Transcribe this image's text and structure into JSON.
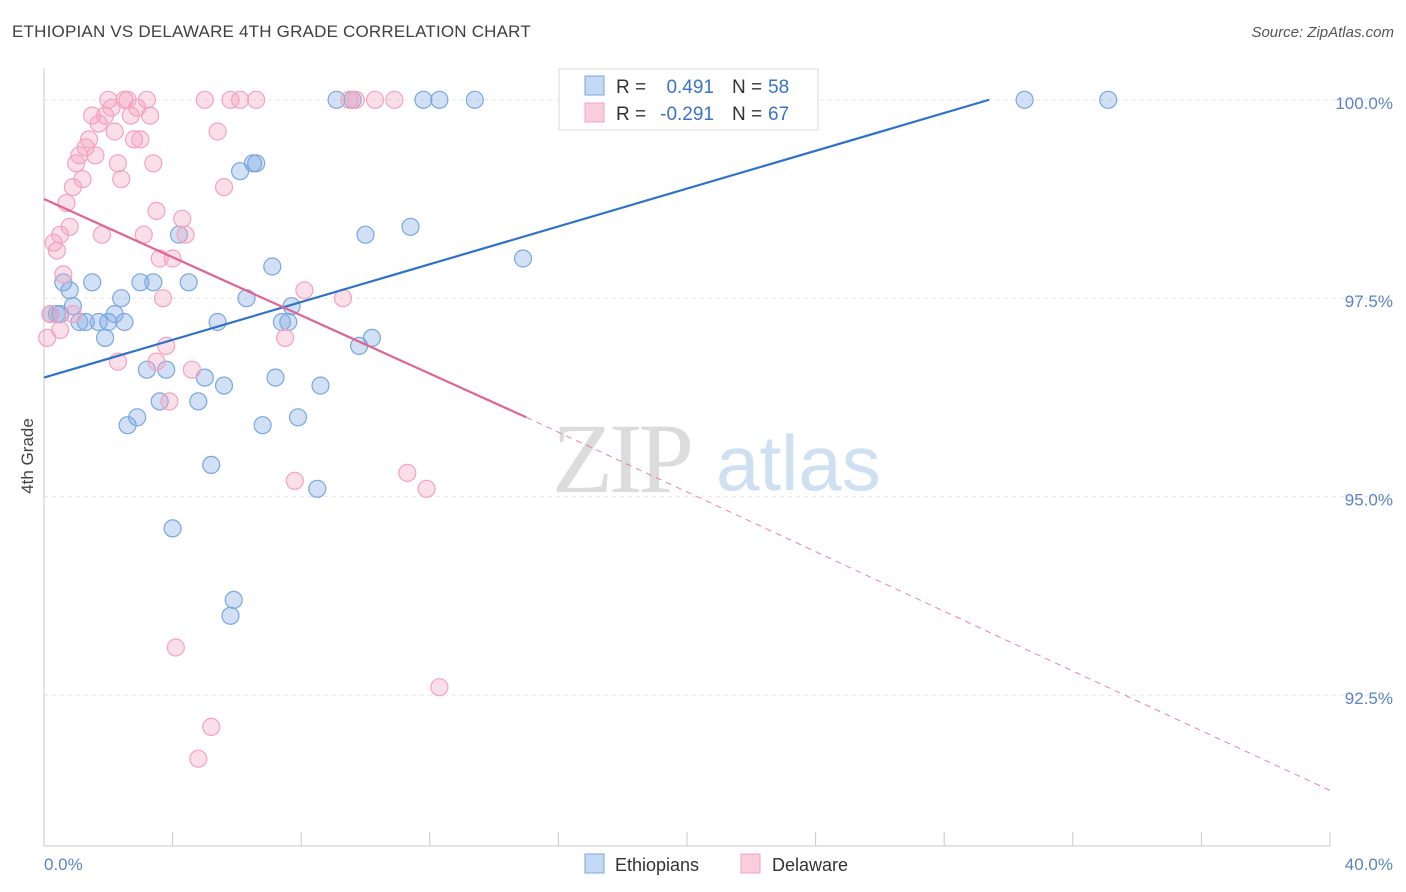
{
  "header": {
    "title": "ETHIOPIAN VS DELAWARE 4TH GRADE CORRELATION CHART",
    "source": "Source: ZipAtlas.com"
  },
  "watermark": {
    "zip": "ZIP",
    "atlas": "atlas"
  },
  "chart_data": {
    "type": "scatter",
    "ylabel": "4th Grade",
    "xlim": [
      0,
      40
    ],
    "ylim": [
      90.6,
      100.4
    ],
    "x_ticks": [
      "0.0%",
      "40.0%"
    ],
    "y_ticks": [
      {
        "value": 100.0,
        "label": "100.0%"
      },
      {
        "value": 97.5,
        "label": "97.5%"
      },
      {
        "value": 95.0,
        "label": "95.0%"
      },
      {
        "value": 92.5,
        "label": "92.5%"
      }
    ],
    "grid": true,
    "legend_position": "top-center",
    "stats": [
      {
        "r_label": "R =",
        "r_value": "0.491",
        "n_label": "N =",
        "n_value": "58"
      },
      {
        "r_label": "R =",
        "r_value": "-0.291",
        "n_label": "N =",
        "n_value": "67"
      }
    ],
    "series": [
      {
        "name": "Ethiopians",
        "color": "#7aa7e0",
        "line_color": "#2f72c8",
        "trend": {
          "x0": 0,
          "y0": 96.5,
          "x1": 29.4,
          "y1": 100.0,
          "dash_to": null
        },
        "points": [
          [
            0.2,
            97.3
          ],
          [
            0.4,
            97.3
          ],
          [
            0.5,
            97.3
          ],
          [
            0.6,
            97.7
          ],
          [
            0.8,
            97.6
          ],
          [
            0.9,
            97.4
          ],
          [
            1.1,
            97.2
          ],
          [
            1.3,
            97.2
          ],
          [
            1.5,
            97.7
          ],
          [
            1.7,
            97.2
          ],
          [
            1.9,
            97.0
          ],
          [
            2.0,
            97.2
          ],
          [
            2.2,
            97.3
          ],
          [
            2.4,
            97.5
          ],
          [
            2.5,
            97.2
          ],
          [
            2.6,
            95.9
          ],
          [
            2.9,
            96.0
          ],
          [
            3.0,
            97.7
          ],
          [
            3.2,
            96.6
          ],
          [
            3.4,
            97.7
          ],
          [
            3.6,
            96.2
          ],
          [
            3.8,
            96.6
          ],
          [
            4.0,
            94.6
          ],
          [
            4.2,
            98.3
          ],
          [
            4.5,
            97.7
          ],
          [
            4.8,
            96.2
          ],
          [
            5.0,
            96.5
          ],
          [
            5.2,
            95.4
          ],
          [
            5.4,
            97.2
          ],
          [
            5.6,
            96.4
          ],
          [
            5.8,
            93.5
          ],
          [
            5.9,
            93.7
          ],
          [
            6.1,
            99.1
          ],
          [
            6.3,
            97.5
          ],
          [
            6.5,
            99.2
          ],
          [
            6.6,
            99.2
          ],
          [
            6.8,
            95.9
          ],
          [
            7.1,
            97.9
          ],
          [
            7.2,
            96.5
          ],
          [
            7.4,
            97.2
          ],
          [
            7.6,
            97.2
          ],
          [
            7.7,
            97.4
          ],
          [
            7.9,
            96.0
          ],
          [
            8.5,
            95.1
          ],
          [
            8.6,
            96.4
          ],
          [
            9.1,
            100.0
          ],
          [
            9.6,
            100.0
          ],
          [
            9.8,
            96.9
          ],
          [
            10.0,
            98.3
          ],
          [
            10.2,
            97.0
          ],
          [
            11.4,
            98.4
          ],
          [
            11.8,
            100.0
          ],
          [
            12.3,
            100.0
          ],
          [
            13.4,
            100.0
          ],
          [
            14.9,
            98.0
          ],
          [
            20.7,
            100.0
          ],
          [
            30.5,
            100.0
          ],
          [
            33.1,
            100.0
          ]
        ]
      },
      {
        "name": "Delaware",
        "color": "#f4a3bd",
        "line_color": "#e06592",
        "trend": {
          "x0": 0,
          "y0": 98.75,
          "x1": 15.0,
          "y1": 96.0,
          "dash_to": {
            "x": 40,
            "y": 91.3
          }
        },
        "points": [
          [
            0.1,
            97.0
          ],
          [
            0.2,
            97.3
          ],
          [
            0.3,
            98.2
          ],
          [
            0.4,
            98.1
          ],
          [
            0.5,
            98.3
          ],
          [
            0.6,
            97.8
          ],
          [
            0.7,
            98.7
          ],
          [
            0.8,
            98.4
          ],
          [
            0.9,
            98.9
          ],
          [
            1.0,
            99.2
          ],
          [
            1.1,
            99.3
          ],
          [
            1.2,
            99.0
          ],
          [
            1.3,
            99.4
          ],
          [
            1.4,
            99.5
          ],
          [
            1.5,
            99.8
          ],
          [
            1.6,
            99.3
          ],
          [
            1.7,
            99.7
          ],
          [
            1.8,
            98.3
          ],
          [
            1.9,
            99.8
          ],
          [
            2.0,
            100.0
          ],
          [
            2.1,
            99.9
          ],
          [
            2.2,
            99.6
          ],
          [
            2.3,
            99.2
          ],
          [
            2.4,
            99.0
          ],
          [
            2.5,
            100.0
          ],
          [
            2.6,
            100.0
          ],
          [
            2.7,
            99.8
          ],
          [
            2.8,
            99.5
          ],
          [
            2.9,
            99.9
          ],
          [
            3.0,
            99.5
          ],
          [
            3.1,
            98.3
          ],
          [
            3.2,
            100.0
          ],
          [
            3.3,
            99.8
          ],
          [
            3.4,
            99.2
          ],
          [
            3.5,
            98.6
          ],
          [
            3.6,
            98.0
          ],
          [
            3.7,
            97.5
          ],
          [
            3.8,
            96.9
          ],
          [
            3.9,
            96.2
          ],
          [
            4.0,
            98.0
          ],
          [
            4.1,
            93.1
          ],
          [
            4.3,
            98.5
          ],
          [
            4.4,
            98.3
          ],
          [
            4.6,
            96.6
          ],
          [
            4.8,
            91.7
          ],
          [
            5.0,
            100.0
          ],
          [
            5.2,
            92.1
          ],
          [
            5.4,
            99.6
          ],
          [
            5.6,
            98.9
          ],
          [
            5.8,
            100.0
          ],
          [
            6.1,
            100.0
          ],
          [
            6.6,
            100.0
          ],
          [
            7.5,
            97.0
          ],
          [
            7.8,
            95.2
          ],
          [
            8.1,
            97.6
          ],
          [
            9.3,
            97.5
          ],
          [
            9.7,
            100.0
          ],
          [
            10.3,
            100.0
          ],
          [
            10.9,
            100.0
          ],
          [
            11.3,
            95.3
          ],
          [
            11.9,
            95.1
          ],
          [
            12.3,
            92.6
          ],
          [
            9.5,
            100.0
          ],
          [
            3.5,
            96.7
          ],
          [
            2.3,
            96.7
          ],
          [
            0.9,
            97.3
          ],
          [
            0.5,
            97.1
          ]
        ]
      }
    ]
  }
}
